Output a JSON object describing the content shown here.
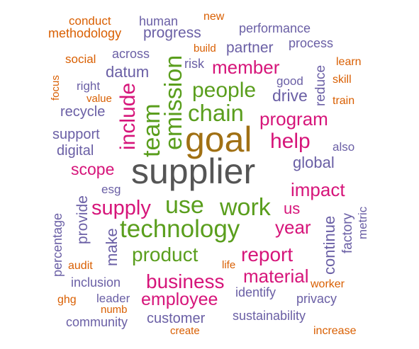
{
  "word_cloud": {
    "colors": {
      "orange": "#d95f02",
      "purple": "#6a5fa5",
      "green": "#5a9e1d",
      "magenta": "#d6157a",
      "brown": "#a07014",
      "gray": "#555555"
    },
    "words": {
      "conduct": "conduct",
      "human": "human",
      "new": "new",
      "methodology": "methodology",
      "progress": "progress",
      "performance": "performance",
      "build": "build",
      "partner": "partner",
      "process": "process",
      "social": "social",
      "across": "across",
      "risk": "risk",
      "member": "member",
      "learn": "learn",
      "datum": "datum",
      "good": "good",
      "skill": "skill",
      "right": "right",
      "people": "people",
      "drive": "drive",
      "value": "value",
      "train": "train",
      "recycle": "recycle",
      "chain": "chain",
      "program": "program",
      "support": "support",
      "goal": "goal",
      "help": "help",
      "digital": "digital",
      "also": "also",
      "global": "global",
      "scope": "scope",
      "supplier": "supplier",
      "esg": "esg",
      "impact": "impact",
      "supply": "supply",
      "use": "use",
      "work": "work",
      "us": "us",
      "year": "year",
      "technology": "technology",
      "product": "product",
      "report": "report",
      "life": "life",
      "audit": "audit",
      "material": "material",
      "business": "business",
      "inclusion": "inclusion",
      "worker": "worker",
      "identify": "identify",
      "leader": "leader",
      "employee": "employee",
      "privacy": "privacy",
      "ghg": "ghg",
      "numb": "numb",
      "customer": "customer",
      "sustainability": "sustainability",
      "community": "community",
      "create": "create",
      "increase": "increase",
      "focus": "focus",
      "include": "include",
      "team": "team",
      "emission": "emission",
      "reduce": "reduce",
      "provide": "provide",
      "percentage": "percentage",
      "make": "make",
      "continue": "continue",
      "factory": "factory",
      "metric": "metric"
    }
  }
}
